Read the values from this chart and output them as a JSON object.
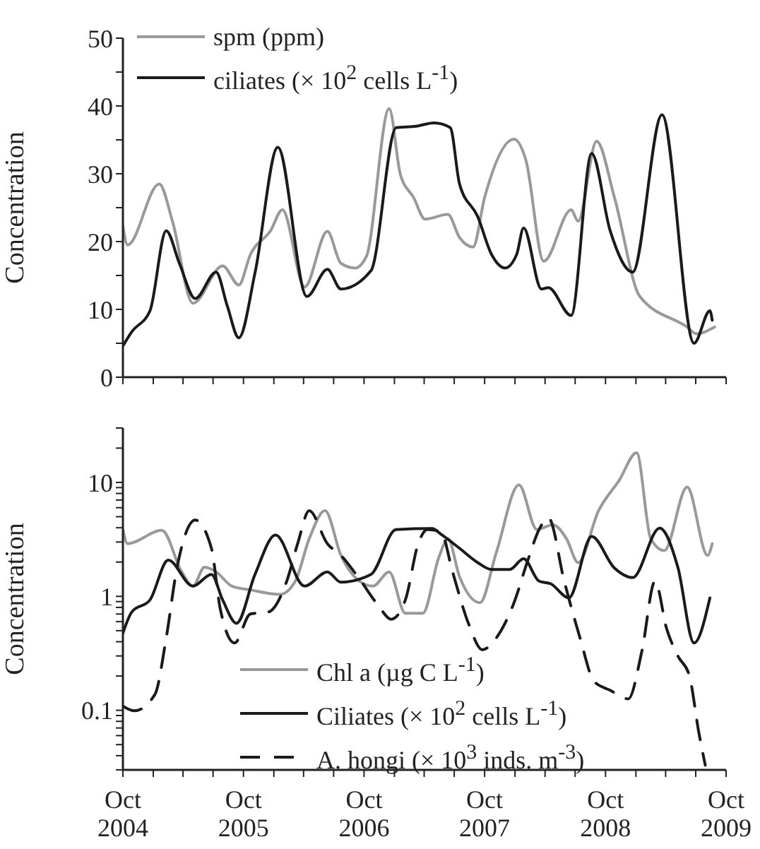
{
  "chart_data": [
    {
      "type": "line",
      "ylabel": "Concentration",
      "xlim": [
        "2004-10-01",
        "2009-10-01"
      ],
      "ylim": [
        0,
        50
      ],
      "xticks": [
        {
          "value": "2004-10-01",
          "label": null
        },
        {
          "value": "2005-01-01",
          "label": null
        },
        {
          "value": "2005-04-01",
          "label": null
        },
        {
          "value": "2005-07-01",
          "label": null
        },
        {
          "value": "2005-10-01",
          "label": null
        },
        {
          "value": "2006-01-01",
          "label": null
        },
        {
          "value": "2006-04-01",
          "label": null
        },
        {
          "value": "2006-07-01",
          "label": null
        },
        {
          "value": "2006-10-01",
          "label": null
        },
        {
          "value": "2007-01-01",
          "label": null
        },
        {
          "value": "2007-04-01",
          "label": null
        },
        {
          "value": "2007-07-01",
          "label": null
        },
        {
          "value": "2007-10-01",
          "label": null
        },
        {
          "value": "2008-01-01",
          "label": null
        },
        {
          "value": "2008-04-01",
          "label": null
        },
        {
          "value": "2008-07-01",
          "label": null
        },
        {
          "value": "2008-10-01",
          "label": null
        },
        {
          "value": "2009-01-01",
          "label": null
        },
        {
          "value": "2009-04-01",
          "label": null
        },
        {
          "value": "2009-07-01",
          "label": null
        },
        {
          "value": "2009-10-01",
          "label": null
        }
      ],
      "yticks": [
        0,
        {
          "value": 5,
          "label": null
        },
        10,
        {
          "value": 15,
          "label": null
        },
        20,
        {
          "value": 25,
          "label": null
        },
        30,
        {
          "value": 35,
          "label": null
        },
        40,
        {
          "value": 45,
          "label": null
        },
        50
      ],
      "tick_labels": "y",
      "legend": "top left",
      "grid": false,
      "marker": "none",
      "series": [
        {
          "name": "spm (ppm)",
          "color": "#999999",
          "x": [
            "2004-10-01",
            "2004-10-15",
            "2005-01-19",
            "2005-02-28",
            "2005-05-01",
            "2005-07-30",
            "2005-09-17",
            "2005-10-22",
            "2005-12-22",
            "2006-01-27",
            "2006-04-04",
            "2006-06-12",
            "2006-07-23",
            "2006-09-04",
            "2006-10-08",
            "2006-12-16",
            "2007-01-19",
            "2007-02-28",
            "2007-04-04",
            "2007-06-12",
            "2007-07-17",
            "2007-08-27",
            "2007-10-01",
            "2007-12-29",
            "2008-02-03",
            "2008-03-28",
            "2008-06-19",
            "2008-07-10",
            "2008-09-04",
            "2008-10-28",
            "2009-01-13",
            "2009-06-05",
            "2009-07-03",
            "2009-08-27"
          ],
          "values": [
            22.3,
            19.5,
            28.5,
            23,
            10.9,
            16.4,
            13.6,
            18.1,
            21.6,
            24.7,
            13.3,
            21.5,
            16.8,
            16.1,
            17.8,
            39.6,
            29.9,
            26.5,
            23.3,
            24,
            20.6,
            19.2,
            26.5,
            35.1,
            32,
            17.1,
            24.7,
            23,
            34.8,
            26.5,
            11.9,
            7.4,
            6.4,
            7.4
          ]
        },
        {
          "name": "ciliates (× 10$^{2}$ cells L$^{-1}$)",
          "color": "#1a1a1a",
          "x": [
            "2004-10-01",
            "2004-10-28",
            "2004-12-22",
            "2005-02-09",
            "2005-03-21",
            "2005-05-08",
            "2005-07-10",
            "2005-08-13",
            "2005-09-17",
            "2005-11-05",
            "2006-01-13",
            "2006-04-11",
            "2006-06-12",
            "2006-07-23",
            "2006-10-22",
            "2007-01-06",
            "2007-03-07",
            "2007-05-01",
            "2007-06-19",
            "2007-07-17",
            "2007-09-10",
            "2007-10-22",
            "2007-12-02",
            "2008-01-06",
            "2008-01-27",
            "2008-03-21",
            "2008-04-11",
            "2008-06-19",
            "2008-08-20",
            "2008-10-15",
            "2008-12-22",
            "2009-03-21",
            "2009-06-26",
            "2009-08-13",
            "2009-08-20"
          ],
          "values": [
            4.6,
            6.7,
            9.8,
            21.6,
            16.8,
            11.6,
            15.5,
            10.5,
            5.8,
            15.4,
            33.9,
            11.9,
            15.9,
            13,
            15.7,
            36.8,
            37,
            37.5,
            36.8,
            28.5,
            23.7,
            18.1,
            16.1,
            18.1,
            22,
            13,
            13.2,
            9.1,
            33,
            21.6,
            15.5,
            38.7,
            5,
            9.8,
            8.4
          ]
        }
      ]
    },
    {
      "type": "line",
      "ylabel": "Concentration",
      "log": "y",
      "xlim": [
        "2004-10-01",
        "2009-10-01"
      ],
      "ylim": [
        0.03,
        30
      ],
      "xticks": [
        {
          "value": "2004-10-01",
          "label": "Oct\n2004"
        },
        {
          "value": "2005-01-01",
          "label": null
        },
        {
          "value": "2005-04-01",
          "label": null
        },
        {
          "value": "2005-07-01",
          "label": null
        },
        {
          "value": "2005-10-01",
          "label": "Oct\n2005"
        },
        {
          "value": "2006-01-01",
          "label": null
        },
        {
          "value": "2006-04-01",
          "label": null
        },
        {
          "value": "2006-07-01",
          "label": null
        },
        {
          "value": "2006-10-01",
          "label": "Oct\n2006"
        },
        {
          "value": "2007-01-01",
          "label": null
        },
        {
          "value": "2007-04-01",
          "label": null
        },
        {
          "value": "2007-07-01",
          "label": null
        },
        {
          "value": "2007-10-01",
          "label": "Oct\n2007"
        },
        {
          "value": "2008-01-01",
          "label": null
        },
        {
          "value": "2008-04-01",
          "label": null
        },
        {
          "value": "2008-07-01",
          "label": null
        },
        {
          "value": "2008-10-01",
          "label": "Oct\n2008"
        },
        {
          "value": "2009-01-01",
          "label": null
        },
        {
          "value": "2009-04-01",
          "label": null
        },
        {
          "value": "2009-07-01",
          "label": null
        },
        {
          "value": "2009-10-01",
          "label": "Oct\n2009"
        }
      ],
      "yticks": [
        {
          "value": 0.03,
          "label": null
        },
        {
          "value": 0.04,
          "label": null
        },
        {
          "value": 0.05,
          "label": null
        },
        {
          "value": 0.06,
          "label": null
        },
        {
          "value": 0.07,
          "label": null
        },
        {
          "value": 0.08,
          "label": null
        },
        {
          "value": 0.09,
          "label": null
        },
        {
          "value": 0.1,
          "label": "0.1"
        },
        {
          "value": 0.2,
          "label": null
        },
        {
          "value": 0.3,
          "label": null
        },
        {
          "value": 0.4,
          "label": null
        },
        {
          "value": 0.5,
          "label": null
        },
        {
          "value": 0.6,
          "label": null
        },
        {
          "value": 0.7,
          "label": null
        },
        {
          "value": 0.8,
          "label": null
        },
        {
          "value": 0.9,
          "label": null
        },
        1,
        {
          "value": 2,
          "label": null
        },
        {
          "value": 3,
          "label": null
        },
        {
          "value": 4,
          "label": null
        },
        {
          "value": 5,
          "label": null
        },
        {
          "value": 6,
          "label": null
        },
        {
          "value": 7,
          "label": null
        },
        {
          "value": 8,
          "label": null
        },
        {
          "value": 9,
          "label": null
        },
        10,
        {
          "value": 20,
          "label": null
        },
        {
          "value": 30,
          "label": null
        }
      ],
      "legend": "bottom",
      "grid": false,
      "marker": "none",
      "series": [
        {
          "name": "Chl a (µg C L$^{-1}$)",
          "color": "#999999",
          "x": [
            "2004-10-01",
            "2004-10-15",
            "2005-01-27",
            "2005-03-28",
            "2005-05-01",
            "2005-06-05",
            "2005-07-10",
            "2005-08-27",
            "2005-10-22",
            "2006-01-19",
            "2006-03-07",
            "2006-04-18",
            "2006-06-05",
            "2006-07-23",
            "2006-09-17",
            "2006-10-28",
            "2006-12-16",
            "2007-02-03",
            "2007-03-28",
            "2007-05-15",
            "2007-06-12",
            "2007-07-17",
            "2007-09-17",
            "2007-11-05",
            "2008-01-13",
            "2008-03-07",
            "2008-04-25",
            "2008-06-05",
            "2008-07-10",
            "2008-09-10",
            "2008-11-12",
            "2009-01-03",
            "2009-02-15",
            "2009-03-28",
            "2009-06-05",
            "2009-08-06",
            "2009-08-20"
          ],
          "values": [
            3.86,
            2.9,
            3.8,
            1.64,
            1.23,
            1.8,
            1.64,
            1.23,
            1.14,
            1.04,
            1.36,
            3.2,
            5.65,
            2.29,
            1.36,
            1.23,
            1.64,
            0.71,
            0.71,
            2.18,
            3.2,
            1.49,
            0.88,
            2.4,
            9.5,
            3.86,
            4.25,
            3.2,
            1.98,
            5.65,
            10.5,
            18.2,
            3.2,
            2.52,
            9.1,
            2.29,
            2.9
          ]
        },
        {
          "name": "Ciliates (× 10$^{2}$ cells L$^{-1}$)",
          "color": "#1a1a1a",
          "x": [
            "2004-10-01",
            "2004-10-28",
            "2004-12-22",
            "2005-02-15",
            "2005-05-01",
            "2005-06-26",
            "2005-07-30",
            "2005-09-10",
            "2005-11-05",
            "2006-01-06",
            "2006-04-04",
            "2006-06-12",
            "2006-07-23",
            "2006-10-22",
            "2007-01-06",
            "2007-04-25",
            "2007-05-22",
            "2007-07-17",
            "2007-09-10",
            "2007-10-22",
            "2007-12-16",
            "2008-01-27",
            "2008-03-14",
            "2008-04-18",
            "2008-06-12",
            "2008-08-20",
            "2008-10-28",
            "2008-12-22",
            "2009-03-14",
            "2009-05-08",
            "2009-06-26",
            "2009-08-13"
          ],
          "values": [
            0.476,
            0.73,
            0.93,
            2.08,
            1.23,
            1.56,
            0.93,
            0.58,
            1.56,
            3.45,
            1.23,
            1.64,
            1.33,
            1.56,
            3.86,
            3.94,
            3.51,
            2.64,
            1.98,
            1.72,
            1.72,
            2.14,
            1.36,
            1.29,
            0.97,
            3.35,
            1.77,
            1.46,
            3.97,
            1.8,
            0.39,
            0.97
          ]
        },
        {
          "name": "A. hongi (× 10$^{3}$ inds. m$^{-3}$)",
          "color": "#1a1a1a",
          "line_style": "dashed",
          "x": [
            "2004-10-01",
            "2004-11-05",
            "2005-01-06",
            "2005-02-09",
            "2005-03-14",
            "2005-05-08",
            "2005-06-26",
            "2005-07-23",
            "2005-09-04",
            "2005-10-22",
            "2005-12-16",
            "2006-02-09",
            "2006-03-14",
            "2006-04-18",
            "2006-06-12",
            "2006-07-23",
            "2006-09-17",
            "2006-11-12",
            "2006-12-22",
            "2007-02-03",
            "2007-03-14",
            "2007-04-11",
            "2007-05-22",
            "2007-06-26",
            "2007-08-13",
            "2007-09-24",
            "2007-11-05",
            "2007-12-29",
            "2008-02-09",
            "2008-03-14",
            "2008-04-11",
            "2008-05-29",
            "2008-07-16",
            "2008-08-27",
            "2008-10-15",
            "2008-12-09",
            "2009-01-19",
            "2009-02-28",
            "2009-04-04",
            "2009-05-08",
            "2009-06-12",
            "2009-07-10",
            "2009-07-30"
          ],
          "values": [
            0.109,
            0.099,
            0.138,
            0.43,
            1.8,
            4.67,
            2.64,
            0.77,
            0.39,
            0.7,
            0.73,
            1.36,
            2.9,
            5.65,
            2.9,
            2.29,
            1.42,
            0.84,
            0.63,
            0.93,
            2.9,
            3.86,
            3.68,
            1.64,
            0.58,
            0.34,
            0.43,
            0.88,
            2.08,
            3.86,
            4.9,
            1.36,
            0.43,
            0.18,
            0.15,
            0.126,
            0.33,
            1.36,
            0.52,
            0.3,
            0.2,
            0.065,
            0.033
          ]
        }
      ]
    }
  ]
}
